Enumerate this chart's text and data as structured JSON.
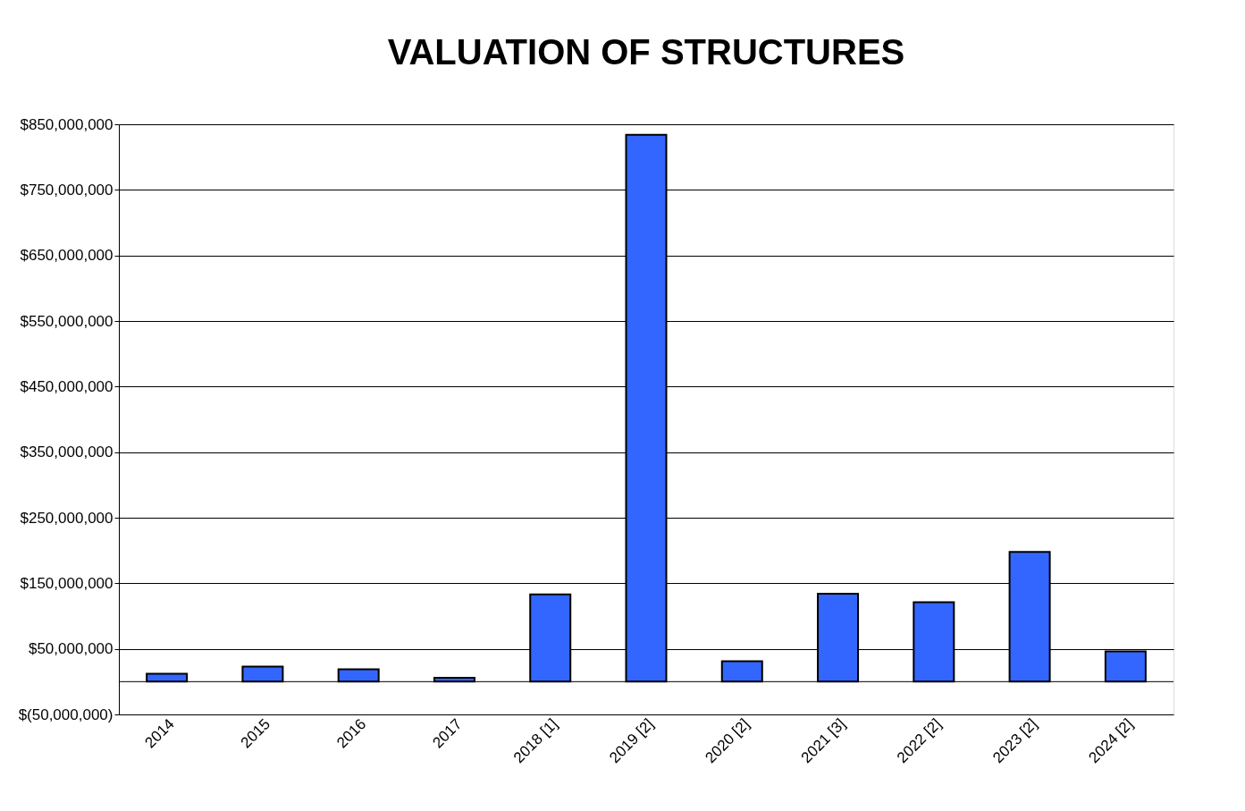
{
  "chart_data": {
    "type": "bar",
    "title": "VALUATION OF STRUCTURES",
    "categories": [
      "2014",
      "2015",
      "2016",
      "2017",
      "2018 [1]",
      "2019 [2]",
      "2020 [2]",
      "2021 [3]",
      "2022 [2]",
      "2023 [2]",
      "2024 [2]"
    ],
    "values": [
      12000000,
      23000000,
      19000000,
      6000000,
      133000000,
      834000000,
      31000000,
      134000000,
      121000000,
      198000000,
      46000000
    ],
    "color": "#3366ff",
    "ylim": [
      -50000000,
      850000000
    ],
    "yticks": [
      {
        "value": -50000000,
        "label": "$(50,000,000)"
      },
      {
        "value": 50000000,
        "label": "$50,000,000"
      },
      {
        "value": 150000000,
        "label": "$150,000,000"
      },
      {
        "value": 250000000,
        "label": "$250,000,000"
      },
      {
        "value": 350000000,
        "label": "$350,000,000"
      },
      {
        "value": 450000000,
        "label": "$450,000,000"
      },
      {
        "value": 550000000,
        "label": "$550,000,000"
      },
      {
        "value": 650000000,
        "label": "$650,000,000"
      },
      {
        "value": 750000000,
        "label": "$750,000,000"
      },
      {
        "value": 850000000,
        "label": "$850,000,000"
      }
    ],
    "grid": "y"
  }
}
